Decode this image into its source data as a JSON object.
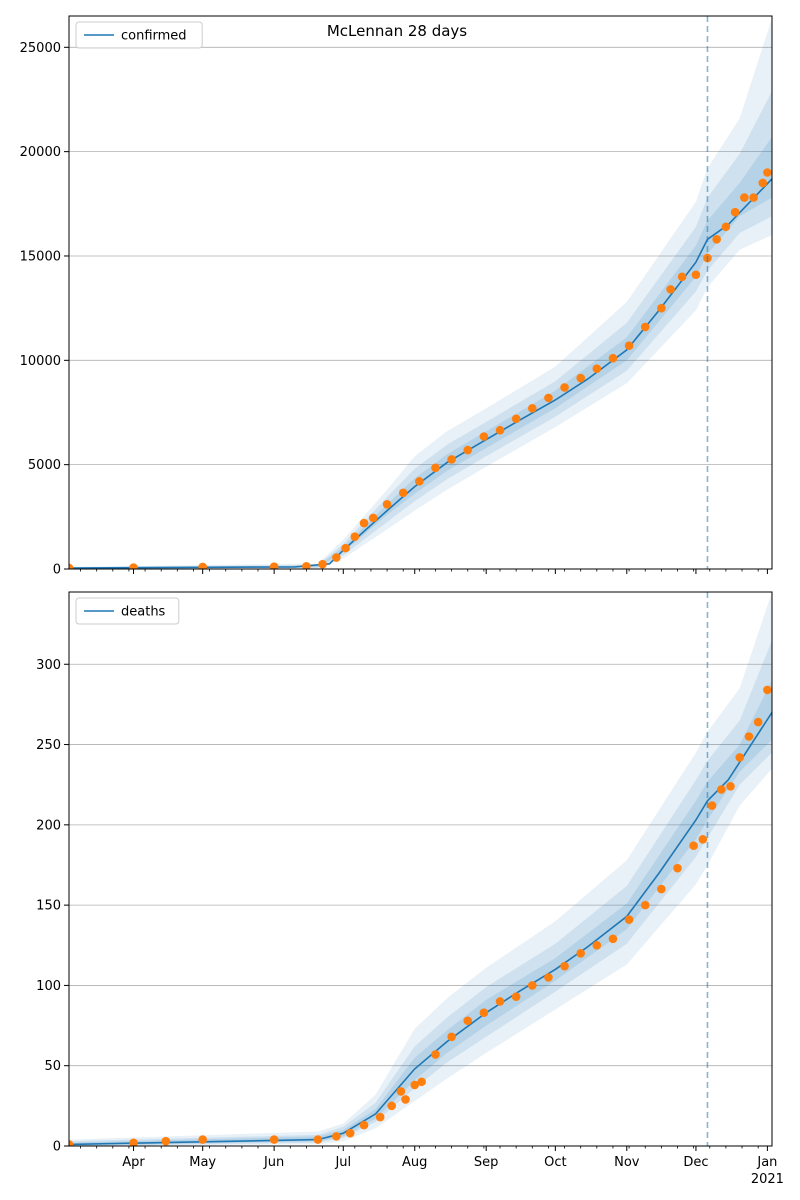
{
  "title": "McLennan 28 days",
  "colors": {
    "model_line": "#1f77b4",
    "observed_points": "#ff7f0e",
    "band_fill": "#1f77b4",
    "forecast_marker": "#1f77b4",
    "grid": "#b0b0b0"
  },
  "chart_data": [
    {
      "type": "line",
      "subtype": "line_with_scatter_and_uncertainty_bands",
      "legend": {
        "label": "confirmed",
        "position": "upper-left"
      },
      "xlim": [
        "2020-03-04",
        "2021-01-03"
      ],
      "ylim": [
        0,
        26500
      ],
      "yticks": [
        0,
        5000,
        10000,
        15000,
        20000,
        25000
      ],
      "grid": "horizontal",
      "forecast_start": "2020-12-06",
      "model_median": {
        "x": [
          "2020-03-04",
          "2020-06-10",
          "2020-06-25",
          "2020-07-01",
          "2020-07-10",
          "2020-07-20",
          "2020-08-01",
          "2020-08-15",
          "2020-09-01",
          "2020-09-15",
          "2020-10-01",
          "2020-10-15",
          "2020-11-01",
          "2020-11-15",
          "2020-12-01",
          "2020-12-06",
          "2020-12-15",
          "2021-01-03"
        ],
        "values": [
          50,
          100,
          250,
          900,
          1800,
          2800,
          3950,
          5100,
          6200,
          7100,
          8100,
          9100,
          10500,
          12400,
          14700,
          15800,
          16500,
          18700
        ]
      },
      "bands": [
        {
          "level": "outer",
          "x": [
            "2020-03-04",
            "2020-06-20",
            "2020-07-01",
            "2020-07-20",
            "2020-08-01",
            "2020-08-15",
            "2020-09-01",
            "2020-10-01",
            "2020-11-01",
            "2020-12-01",
            "2020-12-06",
            "2020-12-20",
            "2021-01-03"
          ],
          "lower": [
            0,
            40,
            500,
            1900,
            2800,
            3800,
            4900,
            6800,
            8900,
            12400,
            13500,
            15300,
            16000
          ],
          "upper": [
            100,
            260,
            1400,
            3800,
            5400,
            6600,
            7700,
            9700,
            12800,
            17600,
            19200,
            21600,
            26400
          ]
        },
        {
          "level": "middle",
          "x": [
            "2020-03-04",
            "2020-06-20",
            "2020-07-01",
            "2020-07-20",
            "2020-08-01",
            "2020-08-15",
            "2020-09-01",
            "2020-10-01",
            "2020-11-01",
            "2020-12-01",
            "2020-12-06",
            "2020-12-20",
            "2021-01-03"
          ],
          "lower": [
            20,
            60,
            650,
            2250,
            3250,
            4300,
            5400,
            7300,
            9500,
            13300,
            14300,
            16100,
            16900
          ],
          "upper": [
            80,
            200,
            1200,
            3450,
            4800,
            5950,
            7050,
            9000,
            11800,
            16400,
            17800,
            19900,
            22900
          ]
        },
        {
          "level": "inner",
          "x": [
            "2020-03-04",
            "2020-06-20",
            "2020-07-01",
            "2020-07-20",
            "2020-08-01",
            "2020-08-15",
            "2020-09-01",
            "2020-10-01",
            "2020-11-01",
            "2020-12-01",
            "2020-12-06",
            "2020-12-20",
            "2021-01-03"
          ],
          "lower": [
            35,
            80,
            800,
            2600,
            3600,
            4700,
            5800,
            7700,
            10000,
            14000,
            15100,
            16900,
            17800
          ],
          "upper": [
            65,
            160,
            1050,
            3100,
            4350,
            5500,
            6600,
            8550,
            11100,
            15500,
            16700,
            18500,
            20700
          ]
        }
      ],
      "observed": {
        "x": [
          "2020-03-04",
          "2020-04-01",
          "2020-05-01",
          "2020-06-01",
          "2020-06-15",
          "2020-06-22",
          "2020-06-28",
          "2020-07-02",
          "2020-07-06",
          "2020-07-10",
          "2020-07-14",
          "2020-07-20",
          "2020-07-27",
          "2020-08-03",
          "2020-08-10",
          "2020-08-17",
          "2020-08-24",
          "2020-08-31",
          "2020-09-07",
          "2020-09-14",
          "2020-09-21",
          "2020-09-28",
          "2020-10-05",
          "2020-10-12",
          "2020-10-19",
          "2020-10-26",
          "2020-11-02",
          "2020-11-09",
          "2020-11-16",
          "2020-11-20",
          "2020-11-25",
          "2020-12-01",
          "2020-12-06",
          "2020-12-10",
          "2020-12-14",
          "2020-12-18",
          "2020-12-22",
          "2020-12-26",
          "2020-12-30",
          "2021-01-01"
        ],
        "values": [
          50,
          70,
          100,
          110,
          130,
          230,
          550,
          1000,
          1550,
          2200,
          2450,
          3100,
          3650,
          4200,
          4850,
          5250,
          5700,
          6350,
          6650,
          7200,
          7700,
          8200,
          8700,
          9150,
          9600,
          10100,
          10700,
          11600,
          12500,
          13400,
          14000,
          14100,
          14900,
          15800,
          16400,
          17100,
          17800,
          17800,
          18500,
          19000
        ]
      }
    },
    {
      "type": "line",
      "subtype": "line_with_scatter_and_uncertainty_bands",
      "legend": {
        "label": "deaths",
        "position": "upper-left"
      },
      "xlim": [
        "2020-03-04",
        "2021-01-03"
      ],
      "ylim": [
        0,
        345
      ],
      "yticks": [
        0,
        50,
        100,
        150,
        200,
        250,
        300
      ],
      "xticks": [
        "Apr",
        "May",
        "Jun",
        "Jul",
        "Aug",
        "Sep",
        "Oct",
        "Nov",
        "Dec",
        "Jan"
      ],
      "xtick_year": "2021",
      "grid": "horizontal",
      "forecast_start": "2020-12-06",
      "model_median": {
        "x": [
          "2020-03-04",
          "2020-06-20",
          "2020-07-01",
          "2020-07-15",
          "2020-08-01",
          "2020-08-15",
          "2020-09-01",
          "2020-09-15",
          "2020-10-01",
          "2020-10-15",
          "2020-11-01",
          "2020-11-15",
          "2020-12-01",
          "2020-12-06",
          "2020-12-15",
          "2021-01-03"
        ],
        "values": [
          1,
          4,
          8,
          20,
          48,
          65,
          83,
          96,
          110,
          124,
          143,
          170,
          203,
          215,
          228,
          270
        ]
      },
      "bands": [
        {
          "level": "outer",
          "x": [
            "2020-03-04",
            "2020-06-20",
            "2020-07-01",
            "2020-07-15",
            "2020-08-01",
            "2020-08-15",
            "2020-09-01",
            "2020-10-01",
            "2020-11-01",
            "2020-12-01",
            "2020-12-06",
            "2020-12-20",
            "2021-01-03"
          ],
          "lower": [
            0,
            1,
            3,
            11,
            28,
            42,
            58,
            85,
            113,
            163,
            175,
            212,
            235
          ],
          "upper": [
            4,
            9,
            14,
            32,
            73,
            92,
            111,
            140,
            178,
            245,
            258,
            285,
            345
          ]
        },
        {
          "level": "middle",
          "x": [
            "2020-03-04",
            "2020-06-20",
            "2020-07-01",
            "2020-07-15",
            "2020-08-01",
            "2020-08-15",
            "2020-09-01",
            "2020-10-01",
            "2020-11-01",
            "2020-12-01",
            "2020-12-06",
            "2020-12-20",
            "2021-01-03"
          ],
          "lower": [
            0,
            2,
            5,
            15,
            36,
            52,
            68,
            96,
            126,
            180,
            192,
            225,
            245
          ],
          "upper": [
            3,
            7,
            12,
            27,
            62,
            80,
            99,
            126,
            162,
            228,
            240,
            265,
            315
          ]
        },
        {
          "level": "inner",
          "x": [
            "2020-03-04",
            "2020-06-20",
            "2020-07-01",
            "2020-07-15",
            "2020-08-01",
            "2020-08-15",
            "2020-09-01",
            "2020-10-01",
            "2020-11-01",
            "2020-12-01",
            "2020-12-06",
            "2020-12-20",
            "2021-01-03"
          ],
          "lower": [
            0,
            3,
            6,
            17,
            41,
            58,
            75,
            103,
            135,
            191,
            203,
            233,
            253
          ],
          "upper": [
            2,
            6,
            10,
            23,
            55,
            72,
            91,
            117,
            151,
            215,
            227,
            250,
            290
          ]
        }
      ],
      "observed": {
        "x": [
          "2020-03-04",
          "2020-04-01",
          "2020-04-15",
          "2020-05-01",
          "2020-06-01",
          "2020-06-20",
          "2020-06-28",
          "2020-07-04",
          "2020-07-10",
          "2020-07-17",
          "2020-07-22",
          "2020-07-26",
          "2020-07-28",
          "2020-08-01",
          "2020-08-04",
          "2020-08-10",
          "2020-08-17",
          "2020-08-24",
          "2020-08-31",
          "2020-09-07",
          "2020-09-14",
          "2020-09-21",
          "2020-09-28",
          "2020-10-05",
          "2020-10-12",
          "2020-10-19",
          "2020-10-26",
          "2020-11-02",
          "2020-11-09",
          "2020-11-16",
          "2020-11-23",
          "2020-11-30",
          "2020-12-04",
          "2020-12-08",
          "2020-12-12",
          "2020-12-16",
          "2020-12-20",
          "2020-12-24",
          "2020-12-28",
          "2021-01-01"
        ],
        "values": [
          1,
          2,
          3,
          4,
          4,
          4,
          6,
          8,
          13,
          18,
          25,
          34,
          29,
          38,
          40,
          57,
          68,
          78,
          83,
          90,
          93,
          100,
          105,
          112,
          120,
          125,
          129,
          141,
          150,
          160,
          173,
          187,
          191,
          212,
          222,
          224,
          242,
          255,
          264,
          284
        ]
      }
    }
  ]
}
